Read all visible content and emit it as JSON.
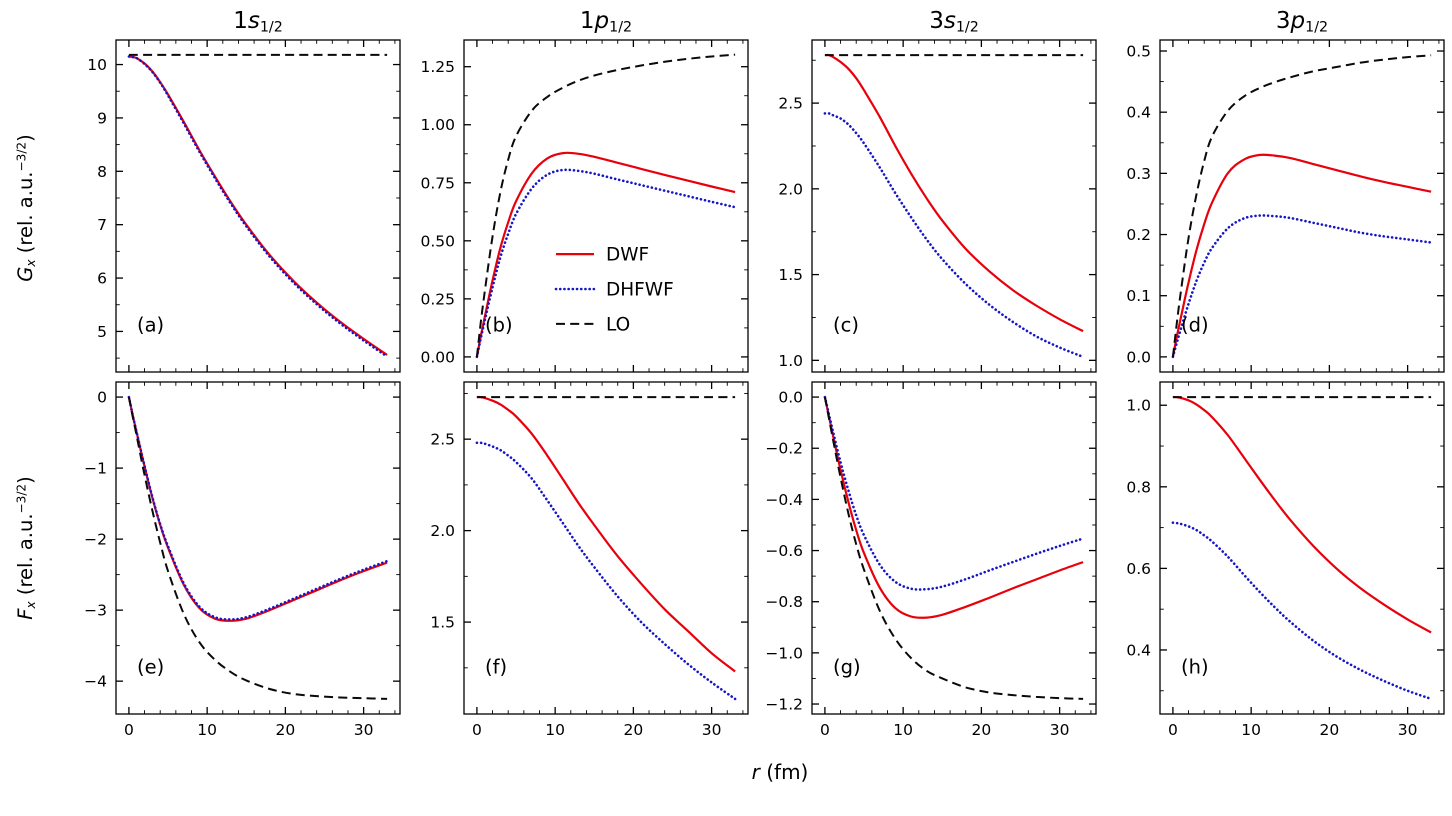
{
  "figure": {
    "background": "#ffffff",
    "xlabel_segments": [
      {
        "t": "r",
        "i": true
      },
      {
        "t": " (fm)"
      }
    ],
    "ylabel_top_segments": [
      {
        "t": "G",
        "i": true
      },
      {
        "t": "x",
        "i": true,
        "sub": true
      },
      {
        "t": " (rel. a.u."
      },
      {
        "t": "−3/2",
        "sup": true
      },
      {
        "t": ")"
      }
    ],
    "ylabel_bottom_segments": [
      {
        "t": "F",
        "i": true
      },
      {
        "t": "x",
        "i": true,
        "sub": true
      },
      {
        "t": " (rel. a.u."
      },
      {
        "t": "−3/2",
        "sup": true
      },
      {
        "t": ")"
      }
    ]
  },
  "styles": {
    "DWF": {
      "color": "#e8000b",
      "dash": "solid",
      "width": 2.2
    },
    "DHFWF": {
      "color": "#1616c8",
      "dash": "dotted",
      "width": 2.6
    },
    "LO": {
      "color": "#0a0a0a",
      "dash": "dashed",
      "width": 2.0
    }
  },
  "legend": {
    "panel": "b",
    "position": "center",
    "entries": [
      {
        "series": "DWF",
        "label": "DWF"
      },
      {
        "series": "DHFWF",
        "label": "DHFWF"
      },
      {
        "series": "LO",
        "label": "LO"
      }
    ]
  },
  "chart_data": {
    "type": "line",
    "xlabel": "r (fm)",
    "ylabel_top": "G_x (rel. a.u.^{-3/2})",
    "ylabel_bottom": "F_x (rel. a.u.^{-3/2})",
    "column_titles": [
      "1s_{1/2}",
      "1p_{1/2}",
      "3s_{1/2}",
      "3p_{1/2}"
    ],
    "x": [
      0,
      0.5,
      1,
      2,
      3,
      4,
      5,
      7,
      9,
      11,
      13,
      15,
      18,
      21,
      24,
      27,
      30,
      33
    ],
    "xlim": [
      -1.65,
      34.65
    ],
    "xticks": {
      "vals": [
        0,
        10,
        20,
        30
      ],
      "labels": [
        "0",
        "10",
        "20",
        "30"
      ]
    },
    "x_minor_step": 2,
    "panels": [
      {
        "id": "a",
        "row": 0,
        "label": "(a)",
        "title": "1s1/2",
        "title_segments": [
          {
            "t": "1"
          },
          {
            "t": "s",
            "i": true
          },
          {
            "t": "1/2",
            "sub": true
          }
        ],
        "ylim": [
          4.24,
          10.46
        ],
        "yticks": {
          "vals": [
            5,
            6,
            7,
            8,
            9,
            10
          ],
          "labels": [
            "5",
            "6",
            "7",
            "8",
            "9",
            "10"
          ]
        },
        "legend": false,
        "series": [
          {
            "name": "DWF",
            "y": [
              10.15,
              10.14,
              10.12,
              10.02,
              9.87,
              9.67,
              9.44,
              8.93,
              8.4,
              7.9,
              7.43,
              7.0,
              6.43,
              5.95,
              5.54,
              5.18,
              4.86,
              4.56
            ]
          },
          {
            "name": "DHFWF",
            "y": [
              10.15,
              10.14,
              10.12,
              10.01,
              9.86,
              9.66,
              9.42,
              8.9,
              8.37,
              7.87,
              7.4,
              6.97,
              6.4,
              5.92,
              5.51,
              5.15,
              4.83,
              4.53
            ]
          },
          {
            "name": "LO",
            "y": [
              10.18,
              10.18,
              10.18,
              10.18,
              10.18,
              10.18,
              10.18,
              10.18,
              10.18,
              10.18,
              10.18,
              10.18,
              10.18,
              10.18,
              10.18,
              10.18,
              10.18,
              10.18
            ]
          }
        ]
      },
      {
        "id": "b",
        "row": 0,
        "label": "(b)",
        "title": "1p1/2",
        "title_segments": [
          {
            "t": "1"
          },
          {
            "t": "p",
            "i": true
          },
          {
            "t": "1/2",
            "sub": true
          }
        ],
        "ylim": [
          -0.065,
          1.365
        ],
        "yticks": {
          "vals": [
            0,
            0.25,
            0.5,
            0.75,
            1.0,
            1.25
          ],
          "labels": [
            "0.00",
            "0.25",
            "0.50",
            "0.75",
            "1.00",
            "1.25"
          ]
        },
        "legend": true,
        "series": [
          {
            "name": "DWF",
            "y": [
              0,
              0.09,
              0.17,
              0.33,
              0.47,
              0.58,
              0.67,
              0.79,
              0.855,
              0.878,
              0.875,
              0.862,
              0.836,
              0.81,
              0.784,
              0.759,
              0.734,
              0.71
            ]
          },
          {
            "name": "DHFWF",
            "y": [
              0,
              0.08,
              0.155,
              0.3,
              0.43,
              0.53,
              0.615,
              0.725,
              0.785,
              0.805,
              0.801,
              0.789,
              0.764,
              0.74,
              0.716,
              0.692,
              0.668,
              0.645
            ]
          },
          {
            "name": "LO",
            "y": [
              0,
              0.15,
              0.28,
              0.52,
              0.71,
              0.85,
              0.95,
              1.06,
              1.12,
              1.16,
              1.19,
              1.212,
              1.236,
              1.255,
              1.271,
              1.284,
              1.294,
              1.302
            ]
          }
        ]
      },
      {
        "id": "c",
        "row": 0,
        "label": "(c)",
        "title": "3s1/2",
        "title_segments": [
          {
            "t": "3"
          },
          {
            "t": "s",
            "i": true
          },
          {
            "t": "1/2",
            "sub": true
          }
        ],
        "ylim": [
          0.932,
          2.868
        ],
        "yticks": {
          "vals": [
            1.0,
            1.5,
            2.0,
            2.5
          ],
          "labels": [
            "1.0",
            "1.5",
            "2.0",
            "2.5"
          ]
        },
        "legend": false,
        "series": [
          {
            "name": "DWF",
            "y": [
              2.78,
              2.78,
              2.77,
              2.74,
              2.7,
              2.645,
              2.575,
              2.42,
              2.25,
              2.09,
              1.945,
              1.815,
              1.65,
              1.52,
              1.41,
              1.32,
              1.24,
              1.17
            ]
          },
          {
            "name": "DHFWF",
            "y": [
              2.44,
              2.44,
              2.43,
              2.41,
              2.375,
              2.325,
              2.265,
              2.125,
              1.975,
              1.835,
              1.705,
              1.59,
              1.445,
              1.325,
              1.225,
              1.14,
              1.075,
              1.02
            ]
          },
          {
            "name": "LO",
            "y": [
              2.78,
              2.78,
              2.78,
              2.78,
              2.78,
              2.78,
              2.78,
              2.78,
              2.78,
              2.78,
              2.78,
              2.78,
              2.78,
              2.78,
              2.78,
              2.78,
              2.78,
              2.78
            ]
          }
        ]
      },
      {
        "id": "d",
        "row": 0,
        "label": "(d)",
        "title": "3p1/2",
        "title_segments": [
          {
            "t": "3"
          },
          {
            "t": "p",
            "i": true
          },
          {
            "t": "1/2",
            "sub": true
          }
        ],
        "ylim": [
          -0.0247,
          0.518
        ],
        "yticks": {
          "vals": [
            0,
            0.1,
            0.2,
            0.3,
            0.4,
            0.5
          ],
          "labels": [
            "0.0",
            "0.1",
            "0.2",
            "0.3",
            "0.4",
            "0.5"
          ]
        },
        "legend": false,
        "series": [
          {
            "name": "DWF",
            "y": [
              0,
              0.033,
              0.063,
              0.122,
              0.174,
              0.217,
              0.252,
              0.3,
              0.322,
              0.33,
              0.329,
              0.325,
              0.315,
              0.305,
              0.295,
              0.286,
              0.278,
              0.27
            ]
          },
          {
            "name": "DHFWF",
            "y": [
              0,
              0.023,
              0.045,
              0.087,
              0.124,
              0.154,
              0.178,
              0.21,
              0.226,
              0.231,
              0.23,
              0.227,
              0.219,
              0.211,
              0.203,
              0.197,
              0.192,
              0.187
            ]
          },
          {
            "name": "LO",
            "y": [
              0,
              0.055,
              0.105,
              0.195,
              0.265,
              0.32,
              0.36,
              0.402,
              0.425,
              0.439,
              0.449,
              0.457,
              0.467,
              0.474,
              0.481,
              0.486,
              0.49,
              0.493
            ]
          }
        ]
      },
      {
        "id": "e",
        "row": 1,
        "label": "(e)",
        "ylim": [
          -4.4625,
          0.2125
        ],
        "yticks": {
          "vals": [
            0,
            -1,
            -2,
            -3,
            -4
          ],
          "labels": [
            "0",
            "−1",
            "−2",
            "−3",
            "−4"
          ]
        },
        "legend": false,
        "series": [
          {
            "name": "DWF",
            "y": [
              0,
              -0.26,
              -0.5,
              -0.98,
              -1.42,
              -1.8,
              -2.12,
              -2.64,
              -2.97,
              -3.12,
              -3.15,
              -3.12,
              -3.0,
              -2.86,
              -2.72,
              -2.58,
              -2.45,
              -2.33
            ]
          },
          {
            "name": "DHFWF",
            "y": [
              0,
              -0.26,
              -0.5,
              -0.97,
              -1.41,
              -1.79,
              -2.1,
              -2.62,
              -2.95,
              -3.1,
              -3.13,
              -3.1,
              -2.98,
              -2.84,
              -2.7,
              -2.56,
              -2.43,
              -2.31
            ]
          },
          {
            "name": "LO",
            "y": [
              0,
              -0.28,
              -0.55,
              -1.1,
              -1.6,
              -2.05,
              -2.45,
              -3.05,
              -3.45,
              -3.7,
              -3.87,
              -3.99,
              -4.11,
              -4.18,
              -4.21,
              -4.23,
              -4.24,
              -4.25
            ]
          }
        ]
      },
      {
        "id": "f",
        "row": 1,
        "label": "(f)",
        "ylim": [
          0.9975,
          2.8125
        ],
        "yticks": {
          "vals": [
            1.5,
            2.0,
            2.5
          ],
          "labels": [
            "1.5",
            "2.0",
            "2.5"
          ]
        },
        "legend": false,
        "series": [
          {
            "name": "DWF",
            "y": [
              2.73,
              2.73,
              2.725,
              2.71,
              2.69,
              2.66,
              2.625,
              2.53,
              2.41,
              2.28,
              2.15,
              2.03,
              1.86,
              1.71,
              1.57,
              1.45,
              1.33,
              1.23
            ]
          },
          {
            "name": "DHFWF",
            "y": [
              2.48,
              2.48,
              2.475,
              2.46,
              2.44,
              2.41,
              2.375,
              2.285,
              2.165,
              2.04,
              1.915,
              1.8,
              1.64,
              1.5,
              1.38,
              1.27,
              1.17,
              1.08
            ]
          },
          {
            "name": "LO",
            "y": [
              2.73,
              2.73,
              2.73,
              2.73,
              2.73,
              2.73,
              2.73,
              2.73,
              2.73,
              2.73,
              2.73,
              2.73,
              2.73,
              2.73,
              2.73,
              2.73,
              2.73,
              2.73
            ]
          }
        ]
      },
      {
        "id": "g",
        "row": 1,
        "label": "(g)",
        "ylim": [
          -1.239,
          0.059
        ],
        "yticks": {
          "vals": [
            0,
            -0.2,
            -0.4,
            -0.6,
            -0.8,
            -1.0,
            -1.2
          ],
          "labels": [
            "0.0",
            "−0.2",
            "−0.4",
            "−0.6",
            "−0.8",
            "−1.0",
            "−1.2"
          ]
        },
        "legend": false,
        "series": [
          {
            "name": "DWF",
            "y": [
              0,
              -0.073,
              -0.145,
              -0.285,
              -0.41,
              -0.52,
              -0.61,
              -0.745,
              -0.825,
              -0.858,
              -0.862,
              -0.851,
              -0.82,
              -0.785,
              -0.748,
              -0.713,
              -0.678,
              -0.645
            ]
          },
          {
            "name": "DHFWF",
            "y": [
              0,
              -0.065,
              -0.13,
              -0.255,
              -0.365,
              -0.462,
              -0.54,
              -0.655,
              -0.722,
              -0.749,
              -0.751,
              -0.741,
              -0.712,
              -0.678,
              -0.645,
              -0.613,
              -0.582,
              -0.553
            ]
          },
          {
            "name": "LO",
            "y": [
              0,
              -0.08,
              -0.16,
              -0.315,
              -0.455,
              -0.575,
              -0.675,
              -0.835,
              -0.945,
              -1.02,
              -1.07,
              -1.1,
              -1.135,
              -1.155,
              -1.165,
              -1.172,
              -1.177,
              -1.18
            ]
          }
        ]
      },
      {
        "id": "h",
        "row": 1,
        "label": "(h)",
        "ylim": [
          0.243,
          1.057
        ],
        "yticks": {
          "vals": [
            0.4,
            0.6,
            0.8,
            1.0
          ],
          "labels": [
            "0.4",
            "0.6",
            "0.8",
            "1.0"
          ]
        },
        "legend": false,
        "series": [
          {
            "name": "DWF",
            "y": [
              1.02,
              1.02,
              1.018,
              1.012,
              1.002,
              0.988,
              0.971,
              0.927,
              0.874,
              0.82,
              0.768,
              0.719,
              0.654,
              0.598,
              0.551,
              0.511,
              0.475,
              0.443
            ]
          },
          {
            "name": "DHFWF",
            "y": [
              0.712,
              0.711,
              0.709,
              0.703,
              0.694,
              0.681,
              0.666,
              0.629,
              0.586,
              0.544,
              0.505,
              0.469,
              0.422,
              0.383,
              0.351,
              0.324,
              0.3,
              0.28
            ]
          },
          {
            "name": "LO",
            "y": [
              1.02,
              1.02,
              1.02,
              1.02,
              1.02,
              1.02,
              1.02,
              1.02,
              1.02,
              1.02,
              1.02,
              1.02,
              1.02,
              1.02,
              1.02,
              1.02,
              1.02,
              1.02
            ]
          }
        ]
      }
    ]
  }
}
